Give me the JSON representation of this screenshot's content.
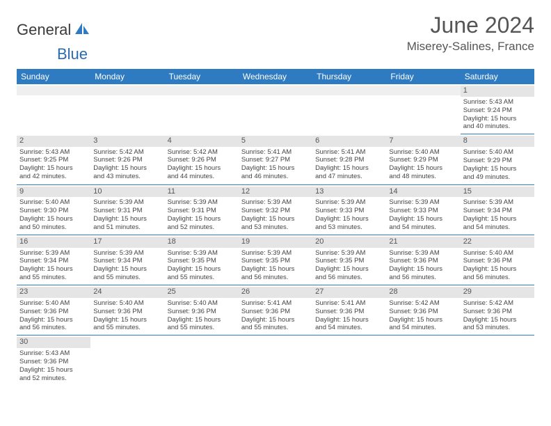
{
  "logo": {
    "word1": "General",
    "word2": "Blue"
  },
  "title": "June 2024",
  "location": "Miserey-Salines, France",
  "colors": {
    "header_bg": "#2f7bc1",
    "header_text": "#ffffff",
    "daynum_bg": "#e5e5e5",
    "cell_border": "#2f7bc1",
    "text": "#444444",
    "title_text": "#555555"
  },
  "fonts": {
    "title_size": 32,
    "location_size": 17,
    "header_size": 12,
    "cell_size": 9.5
  },
  "weekdays": [
    "Sunday",
    "Monday",
    "Tuesday",
    "Wednesday",
    "Thursday",
    "Friday",
    "Saturday"
  ],
  "weeks": [
    [
      null,
      null,
      null,
      null,
      null,
      null,
      {
        "d": "1",
        "sr": "Sunrise: 5:43 AM",
        "ss": "Sunset: 9:24 PM",
        "dl1": "Daylight: 15 hours",
        "dl2": "and 40 minutes."
      }
    ],
    [
      {
        "d": "2",
        "sr": "Sunrise: 5:43 AM",
        "ss": "Sunset: 9:25 PM",
        "dl1": "Daylight: 15 hours",
        "dl2": "and 42 minutes."
      },
      {
        "d": "3",
        "sr": "Sunrise: 5:42 AM",
        "ss": "Sunset: 9:26 PM",
        "dl1": "Daylight: 15 hours",
        "dl2": "and 43 minutes."
      },
      {
        "d": "4",
        "sr": "Sunrise: 5:42 AM",
        "ss": "Sunset: 9:26 PM",
        "dl1": "Daylight: 15 hours",
        "dl2": "and 44 minutes."
      },
      {
        "d": "5",
        "sr": "Sunrise: 5:41 AM",
        "ss": "Sunset: 9:27 PM",
        "dl1": "Daylight: 15 hours",
        "dl2": "and 46 minutes."
      },
      {
        "d": "6",
        "sr": "Sunrise: 5:41 AM",
        "ss": "Sunset: 9:28 PM",
        "dl1": "Daylight: 15 hours",
        "dl2": "and 47 minutes."
      },
      {
        "d": "7",
        "sr": "Sunrise: 5:40 AM",
        "ss": "Sunset: 9:29 PM",
        "dl1": "Daylight: 15 hours",
        "dl2": "and 48 minutes."
      },
      {
        "d": "8",
        "sr": "Sunrise: 5:40 AM",
        "ss": "Sunset: 9:29 PM",
        "dl1": "Daylight: 15 hours",
        "dl2": "and 49 minutes."
      }
    ],
    [
      {
        "d": "9",
        "sr": "Sunrise: 5:40 AM",
        "ss": "Sunset: 9:30 PM",
        "dl1": "Daylight: 15 hours",
        "dl2": "and 50 minutes."
      },
      {
        "d": "10",
        "sr": "Sunrise: 5:39 AM",
        "ss": "Sunset: 9:31 PM",
        "dl1": "Daylight: 15 hours",
        "dl2": "and 51 minutes."
      },
      {
        "d": "11",
        "sr": "Sunrise: 5:39 AM",
        "ss": "Sunset: 9:31 PM",
        "dl1": "Daylight: 15 hours",
        "dl2": "and 52 minutes."
      },
      {
        "d": "12",
        "sr": "Sunrise: 5:39 AM",
        "ss": "Sunset: 9:32 PM",
        "dl1": "Daylight: 15 hours",
        "dl2": "and 53 minutes."
      },
      {
        "d": "13",
        "sr": "Sunrise: 5:39 AM",
        "ss": "Sunset: 9:33 PM",
        "dl1": "Daylight: 15 hours",
        "dl2": "and 53 minutes."
      },
      {
        "d": "14",
        "sr": "Sunrise: 5:39 AM",
        "ss": "Sunset: 9:33 PM",
        "dl1": "Daylight: 15 hours",
        "dl2": "and 54 minutes."
      },
      {
        "d": "15",
        "sr": "Sunrise: 5:39 AM",
        "ss": "Sunset: 9:34 PM",
        "dl1": "Daylight: 15 hours",
        "dl2": "and 54 minutes."
      }
    ],
    [
      {
        "d": "16",
        "sr": "Sunrise: 5:39 AM",
        "ss": "Sunset: 9:34 PM",
        "dl1": "Daylight: 15 hours",
        "dl2": "and 55 minutes."
      },
      {
        "d": "17",
        "sr": "Sunrise: 5:39 AM",
        "ss": "Sunset: 9:34 PM",
        "dl1": "Daylight: 15 hours",
        "dl2": "and 55 minutes."
      },
      {
        "d": "18",
        "sr": "Sunrise: 5:39 AM",
        "ss": "Sunset: 9:35 PM",
        "dl1": "Daylight: 15 hours",
        "dl2": "and 55 minutes."
      },
      {
        "d": "19",
        "sr": "Sunrise: 5:39 AM",
        "ss": "Sunset: 9:35 PM",
        "dl1": "Daylight: 15 hours",
        "dl2": "and 56 minutes."
      },
      {
        "d": "20",
        "sr": "Sunrise: 5:39 AM",
        "ss": "Sunset: 9:35 PM",
        "dl1": "Daylight: 15 hours",
        "dl2": "and 56 minutes."
      },
      {
        "d": "21",
        "sr": "Sunrise: 5:39 AM",
        "ss": "Sunset: 9:36 PM",
        "dl1": "Daylight: 15 hours",
        "dl2": "and 56 minutes."
      },
      {
        "d": "22",
        "sr": "Sunrise: 5:40 AM",
        "ss": "Sunset: 9:36 PM",
        "dl1": "Daylight: 15 hours",
        "dl2": "and 56 minutes."
      }
    ],
    [
      {
        "d": "23",
        "sr": "Sunrise: 5:40 AM",
        "ss": "Sunset: 9:36 PM",
        "dl1": "Daylight: 15 hours",
        "dl2": "and 56 minutes."
      },
      {
        "d": "24",
        "sr": "Sunrise: 5:40 AM",
        "ss": "Sunset: 9:36 PM",
        "dl1": "Daylight: 15 hours",
        "dl2": "and 55 minutes."
      },
      {
        "d": "25",
        "sr": "Sunrise: 5:40 AM",
        "ss": "Sunset: 9:36 PM",
        "dl1": "Daylight: 15 hours",
        "dl2": "and 55 minutes."
      },
      {
        "d": "26",
        "sr": "Sunrise: 5:41 AM",
        "ss": "Sunset: 9:36 PM",
        "dl1": "Daylight: 15 hours",
        "dl2": "and 55 minutes."
      },
      {
        "d": "27",
        "sr": "Sunrise: 5:41 AM",
        "ss": "Sunset: 9:36 PM",
        "dl1": "Daylight: 15 hours",
        "dl2": "and 54 minutes."
      },
      {
        "d": "28",
        "sr": "Sunrise: 5:42 AM",
        "ss": "Sunset: 9:36 PM",
        "dl1": "Daylight: 15 hours",
        "dl2": "and 54 minutes."
      },
      {
        "d": "29",
        "sr": "Sunrise: 5:42 AM",
        "ss": "Sunset: 9:36 PM",
        "dl1": "Daylight: 15 hours",
        "dl2": "and 53 minutes."
      }
    ],
    [
      {
        "d": "30",
        "sr": "Sunrise: 5:43 AM",
        "ss": "Sunset: 9:36 PM",
        "dl1": "Daylight: 15 hours",
        "dl2": "and 52 minutes."
      },
      null,
      null,
      null,
      null,
      null,
      null
    ]
  ]
}
